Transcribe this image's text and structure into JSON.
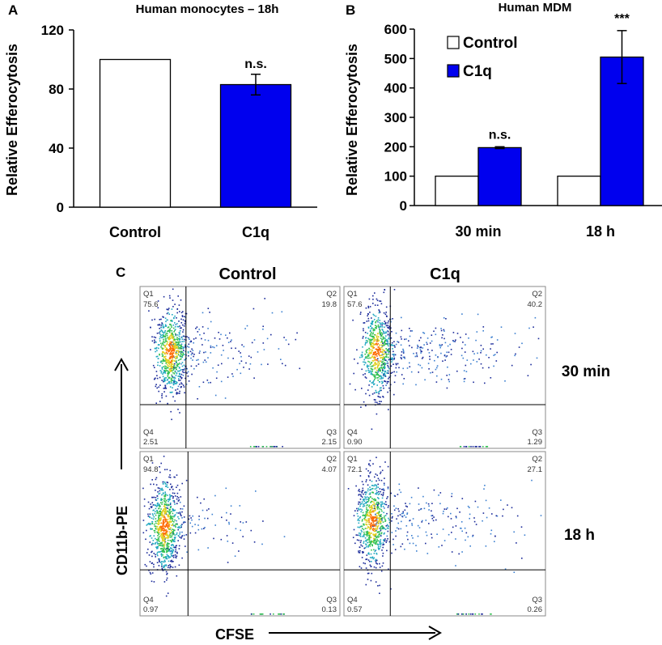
{
  "panel_letters": {
    "a": "A",
    "b": "B",
    "c": "C"
  },
  "colors": {
    "control_fill": "#ffffff",
    "c1q_fill": "#0000ee",
    "stroke": "#000000"
  },
  "chart_data": [
    {
      "type": "bar",
      "title": "Human monocytes – 18h",
      "categories": [
        "Control",
        "C1q"
      ],
      "values": [
        100,
        83
      ],
      "errors": [
        0,
        7
      ],
      "significance": [
        "",
        "n.s."
      ],
      "ylabel": "Relative Efferocytosis",
      "xlabel": "",
      "ylim": [
        0,
        120
      ],
      "yticks": [
        0,
        40,
        80,
        120
      ]
    },
    {
      "type": "bar",
      "title": "Human MDM",
      "categories": [
        "30 min",
        "18 h"
      ],
      "series": [
        {
          "name": "Control",
          "values": [
            100,
            100
          ],
          "errors": [
            0,
            0
          ]
        },
        {
          "name": "C1q",
          "values": [
            197,
            505
          ],
          "errors": [
            3,
            90
          ]
        }
      ],
      "significance": [
        "n.s.",
        "***"
      ],
      "ylabel": "Relative Efferocytosis",
      "xlabel": "",
      "ylim": [
        0,
        600
      ],
      "yticks": [
        0,
        100,
        200,
        300,
        400,
        500,
        600
      ],
      "legend_position": "top-left"
    }
  ],
  "flow": {
    "column_headers": [
      "Control",
      "C1q"
    ],
    "row_labels": [
      "30 min",
      "18 h"
    ],
    "y_axis_label": "CD11b-PE",
    "x_axis_label": "CFSE",
    "quadrant_names": [
      "Q1",
      "Q2",
      "Q3",
      "Q4"
    ],
    "plots": [
      {
        "condition": "Control",
        "time": "30 min",
        "q1": "75.6",
        "q2": "19.8",
        "q3": "2.15",
        "q4": "2.51"
      },
      {
        "condition": "C1q",
        "time": "30 min",
        "q1": "57.6",
        "q2": "40.2",
        "q3": "1.29",
        "q4": "0.90"
      },
      {
        "condition": "Control",
        "time": "18 h",
        "q1": "94.8",
        "q2": "4.07",
        "q3": "0.13",
        "q4": "0.97"
      },
      {
        "condition": "C1q",
        "time": "18 h",
        "q1": "72.1",
        "q2": "27.1",
        "q3": "0.26",
        "q4": "0.57"
      }
    ]
  }
}
